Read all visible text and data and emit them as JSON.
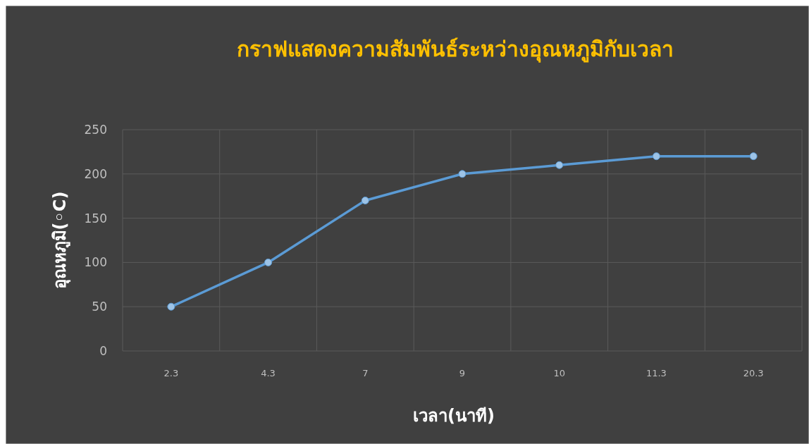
{
  "chart_data": {
    "type": "line",
    "title": "กราฟแสดงความสัมพันธ์ระหว่างอุณหภูมิกับเวลา",
    "xlabel": "เวลา(นาที)",
    "ylabel": "อุณหภูมิ(◦C)",
    "categories": [
      "2.3",
      "4.3",
      "7",
      "9",
      "10",
      "11.3",
      "20.3"
    ],
    "series": [
      {
        "color": "#5b9bd5",
        "values": [
          50,
          100,
          170,
          200,
          210,
          220,
          220
        ]
      }
    ],
    "ylim": [
      0,
      250
    ],
    "yticks": [
      0,
      50,
      100,
      150,
      200,
      250
    ],
    "grid": true,
    "marker": "circle",
    "line_style": "solid"
  }
}
